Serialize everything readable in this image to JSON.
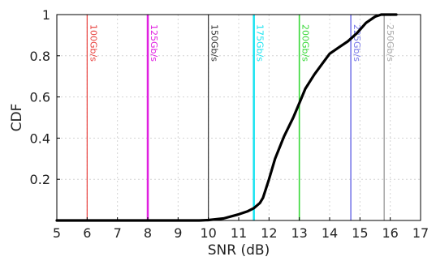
{
  "chart_data": {
    "type": "line",
    "title": "",
    "xlabel": "SNR (dB)",
    "ylabel": "CDF",
    "xlim": [
      5,
      17
    ],
    "ylim": [
      0,
      1
    ],
    "xticks": [
      5,
      6,
      7,
      8,
      9,
      10,
      11,
      12,
      13,
      14,
      15,
      16,
      17
    ],
    "xtick_labels": [
      "5",
      "6",
      "7",
      "8",
      "9",
      "10",
      "11",
      "12",
      "13",
      "14",
      "15",
      "16",
      "17"
    ],
    "yticks": [
      0.2,
      0.4,
      0.6,
      0.8,
      1
    ],
    "ytick_labels": [
      "0.2",
      "0.4",
      "0.6",
      "0.8",
      "1"
    ],
    "grid": true,
    "series": [
      {
        "color": "#000000",
        "x": [
          5.0,
          6.0,
          7.0,
          8.0,
          9.0,
          9.7,
          10.0,
          10.5,
          11.0,
          11.3,
          11.5,
          11.7,
          11.8,
          12.0,
          12.2,
          12.5,
          12.8,
          13.0,
          13.2,
          13.5,
          13.8,
          14.0,
          14.3,
          14.6,
          14.9,
          15.2,
          15.5,
          15.7,
          16.2
        ],
        "y": [
          0.0,
          0.0,
          0.0,
          0.0,
          0.0,
          0.0,
          0.002,
          0.01,
          0.03,
          0.045,
          0.06,
          0.085,
          0.11,
          0.2,
          0.3,
          0.41,
          0.5,
          0.57,
          0.64,
          0.71,
          0.77,
          0.81,
          0.84,
          0.87,
          0.91,
          0.96,
          0.99,
          1.0,
          1.0
        ]
      }
    ],
    "thresholds": [
      {
        "x": 6,
        "label": "100Gb/s",
        "color": "#e8413d",
        "width": 1.2
      },
      {
        "x": 8,
        "label": "125Gb/s",
        "color": "#e020e0",
        "width": 2.5
      },
      {
        "x": 10,
        "label": "150Gb/s",
        "color": "#333333",
        "width": 1.2
      },
      {
        "x": 11.5,
        "label": "175Gb/s",
        "color": "#19e3f0",
        "width": 2.5
      },
      {
        "x": 13,
        "label": "200Gb/s",
        "color": "#37d837",
        "width": 1.6
      },
      {
        "x": 14.7,
        "label": "225Gb/s",
        "color": "#7a7ae8",
        "width": 1.6
      },
      {
        "x": 15.8,
        "label": "250Gb/s",
        "color": "#aaaaaa",
        "width": 1.6
      }
    ]
  }
}
